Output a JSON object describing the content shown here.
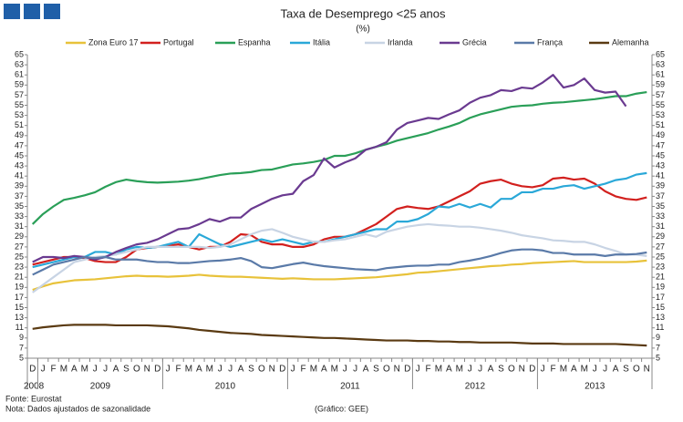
{
  "chart_data": {
    "type": "line",
    "title": "Taxa de Desemprego <25 anos",
    "subtitle": "(%)",
    "source": "Fonte: Eurostat",
    "note": "Nota: Dados ajustados de sazonalidade",
    "credit": "(Gráfico: GEE)",
    "categories": [
      "D",
      "J",
      "F",
      "M",
      "A",
      "M",
      "J",
      "J",
      "A",
      "S",
      "O",
      "N",
      "D",
      "J",
      "F",
      "M",
      "A",
      "M",
      "J",
      "J",
      "A",
      "S",
      "O",
      "N",
      "D",
      "J",
      "F",
      "M",
      "A",
      "M",
      "J",
      "J",
      "A",
      "S",
      "O",
      "N",
      "D",
      "J",
      "F",
      "M",
      "A",
      "M",
      "J",
      "J",
      "A",
      "S",
      "O",
      "N",
      "D",
      "J",
      "F",
      "M",
      "A",
      "M",
      "J",
      "J",
      "A",
      "S",
      "O",
      "N"
    ],
    "years": [
      "2008",
      "2009",
      "2010",
      "2011",
      "2012",
      "2013"
    ],
    "ylim": [
      5,
      65
    ],
    "yticks": [
      5,
      7,
      9,
      11,
      13,
      15,
      17,
      19,
      21,
      23,
      25,
      27,
      29,
      31,
      33,
      35,
      37,
      39,
      41,
      43,
      45,
      47,
      49,
      51,
      53,
      55,
      57,
      59,
      61,
      63,
      65
    ],
    "grid": false,
    "legend": "top",
    "series": [
      {
        "name": "Zona Euro 17",
        "color": "#e8c23a",
        "values": [
          18.5,
          19.2,
          19.8,
          20.1,
          20.4,
          20.5,
          20.6,
          20.8,
          21.0,
          21.2,
          21.3,
          21.2,
          21.2,
          21.1,
          21.2,
          21.3,
          21.5,
          21.3,
          21.2,
          21.1,
          21.1,
          21.0,
          20.9,
          20.8,
          20.7,
          20.8,
          20.7,
          20.6,
          20.6,
          20.6,
          20.7,
          20.8,
          20.9,
          21.0,
          21.2,
          21.4,
          21.6,
          21.9,
          22.0,
          22.2,
          22.4,
          22.6,
          22.8,
          23.0,
          23.2,
          23.3,
          23.5,
          23.6,
          23.8,
          23.9,
          24.0,
          24.1,
          24.2,
          24.0,
          24.0,
          24.0,
          24.0,
          24.0,
          24.1,
          24.3
        ]
      },
      {
        "name": "Portugal",
        "color": "#d2201e",
        "values": [
          23.5,
          24.0,
          24.5,
          25.0,
          25.0,
          24.8,
          24.2,
          24.0,
          24.0,
          25.0,
          26.5,
          26.8,
          27.0,
          27.2,
          27.5,
          27.0,
          26.5,
          27.0,
          27.0,
          28.0,
          29.5,
          29.3,
          28.0,
          27.5,
          27.5,
          27.0,
          27.0,
          27.5,
          28.5,
          29.0,
          29.0,
          29.5,
          30.5,
          31.5,
          33.0,
          34.5,
          35.0,
          34.7,
          34.5,
          35.0,
          36.0,
          37.0,
          38.0,
          39.5,
          40.0,
          40.3,
          39.5,
          39.0,
          38.8,
          39.2,
          40.5,
          40.7,
          40.3,
          40.5,
          39.5,
          38.0,
          37.0,
          36.5,
          36.3,
          36.8
        ]
      },
      {
        "name": "Espanha",
        "color": "#2a9f58",
        "values": [
          31.5,
          33.5,
          35.0,
          36.3,
          36.7,
          37.2,
          37.8,
          38.9,
          39.8,
          40.3,
          40.0,
          39.8,
          39.7,
          39.8,
          39.9,
          40.1,
          40.4,
          40.8,
          41.2,
          41.5,
          41.6,
          41.8,
          42.2,
          42.3,
          42.8,
          43.3,
          43.5,
          43.8,
          44.2,
          45.0,
          45.0,
          45.5,
          46.2,
          46.8,
          47.3,
          48.0,
          48.5,
          49.0,
          49.5,
          50.2,
          50.8,
          51.5,
          52.5,
          53.2,
          53.7,
          54.2,
          54.7,
          54.9,
          55.0,
          55.3,
          55.5,
          55.6,
          55.8,
          56.0,
          56.2,
          56.5,
          56.8,
          56.8,
          57.3,
          57.6
        ]
      },
      {
        "name": "Itália",
        "color": "#2aa8d8",
        "values": [
          23.0,
          23.5,
          24.0,
          24.5,
          25.0,
          25.0,
          26.0,
          26.0,
          25.5,
          26.5,
          27.0,
          26.8,
          27.0,
          27.5,
          28.0,
          27.0,
          29.5,
          28.5,
          27.5,
          27.0,
          27.5,
          28.0,
          28.5,
          28.0,
          28.5,
          28.0,
          27.5,
          28.0,
          28.0,
          28.5,
          29.0,
          29.5,
          30.0,
          30.5,
          30.5,
          32.0,
          32.0,
          32.5,
          33.5,
          35.0,
          34.8,
          35.5,
          34.8,
          35.5,
          34.8,
          36.5,
          36.5,
          37.8,
          37.8,
          38.5,
          38.5,
          39.0,
          39.2,
          38.5,
          39.0,
          39.5,
          40.2,
          40.5,
          41.3,
          41.6
        ]
      },
      {
        "name": "Irlanda",
        "color": "#c8d4e4",
        "values": [
          18.0,
          19.5,
          21.0,
          22.5,
          24.0,
          24.5,
          25.0,
          25.2,
          25.5,
          26.0,
          26.5,
          27.0,
          27.0,
          27.0,
          27.0,
          27.0,
          27.0,
          26.8,
          27.0,
          27.5,
          28.5,
          29.5,
          30.2,
          30.5,
          29.8,
          29.0,
          28.5,
          28.0,
          28.0,
          28.3,
          28.5,
          29.0,
          29.5,
          29.0,
          30.0,
          30.5,
          31.0,
          31.3,
          31.5,
          31.3,
          31.2,
          31.0,
          31.0,
          30.8,
          30.5,
          30.2,
          29.8,
          29.3,
          29.0,
          28.7,
          28.3,
          28.2,
          28.0,
          28.0,
          27.5,
          26.8,
          26.2,
          25.5,
          25.5,
          25.2
        ]
      },
      {
        "name": "Grécia",
        "color": "#6a3a90",
        "values": [
          24.0,
          25.0,
          25.0,
          24.8,
          25.2,
          25.0,
          24.5,
          25.0,
          26.0,
          26.8,
          27.5,
          27.8,
          28.5,
          29.5,
          30.5,
          30.7,
          31.5,
          32.5,
          32.0,
          32.8,
          32.8,
          34.5,
          35.5,
          36.5,
          37.2,
          37.5,
          40.0,
          41.2,
          44.5,
          42.7,
          43.7,
          44.5,
          46.2,
          46.8,
          47.7,
          50.2,
          51.5,
          52.0,
          52.5,
          52.3,
          53.2,
          54.0,
          55.5,
          56.5,
          57.0,
          58.0,
          57.8,
          58.5,
          58.3,
          59.5,
          61.0,
          58.5,
          59.0,
          60.3,
          58.0,
          57.5,
          57.7,
          54.8,
          null,
          null
        ]
      },
      {
        "name": "França",
        "color": "#5a7aa8",
        "values": [
          21.5,
          22.5,
          23.5,
          24.0,
          24.5,
          25.0,
          24.8,
          25.0,
          24.5,
          24.5,
          24.5,
          24.2,
          24.0,
          24.0,
          23.8,
          23.8,
          24.0,
          24.2,
          24.3,
          24.5,
          24.8,
          24.2,
          23.0,
          22.8,
          23.2,
          23.6,
          23.9,
          23.5,
          23.2,
          23.0,
          22.8,
          22.6,
          22.5,
          22.4,
          22.8,
          23.0,
          23.2,
          23.3,
          23.3,
          23.5,
          23.5,
          24.0,
          24.3,
          24.7,
          25.2,
          25.8,
          26.3,
          26.5,
          26.5,
          26.3,
          25.8,
          25.8,
          25.5,
          25.5,
          25.5,
          25.2,
          25.5,
          25.5,
          25.6,
          25.9
        ]
      },
      {
        "name": "Alemanha",
        "color": "#5a3a12",
        "values": [
          10.8,
          11.1,
          11.3,
          11.5,
          11.6,
          11.6,
          11.6,
          11.6,
          11.5,
          11.5,
          11.5,
          11.5,
          11.4,
          11.3,
          11.1,
          10.9,
          10.6,
          10.4,
          10.2,
          10.0,
          9.9,
          9.8,
          9.6,
          9.5,
          9.4,
          9.3,
          9.2,
          9.1,
          9.0,
          9.0,
          8.9,
          8.8,
          8.7,
          8.6,
          8.5,
          8.5,
          8.5,
          8.4,
          8.4,
          8.3,
          8.3,
          8.2,
          8.2,
          8.1,
          8.1,
          8.1,
          8.1,
          8.0,
          7.9,
          7.9,
          7.9,
          7.8,
          7.8,
          7.8,
          7.8,
          7.8,
          7.8,
          7.7,
          7.6,
          7.5
        ]
      }
    ]
  }
}
